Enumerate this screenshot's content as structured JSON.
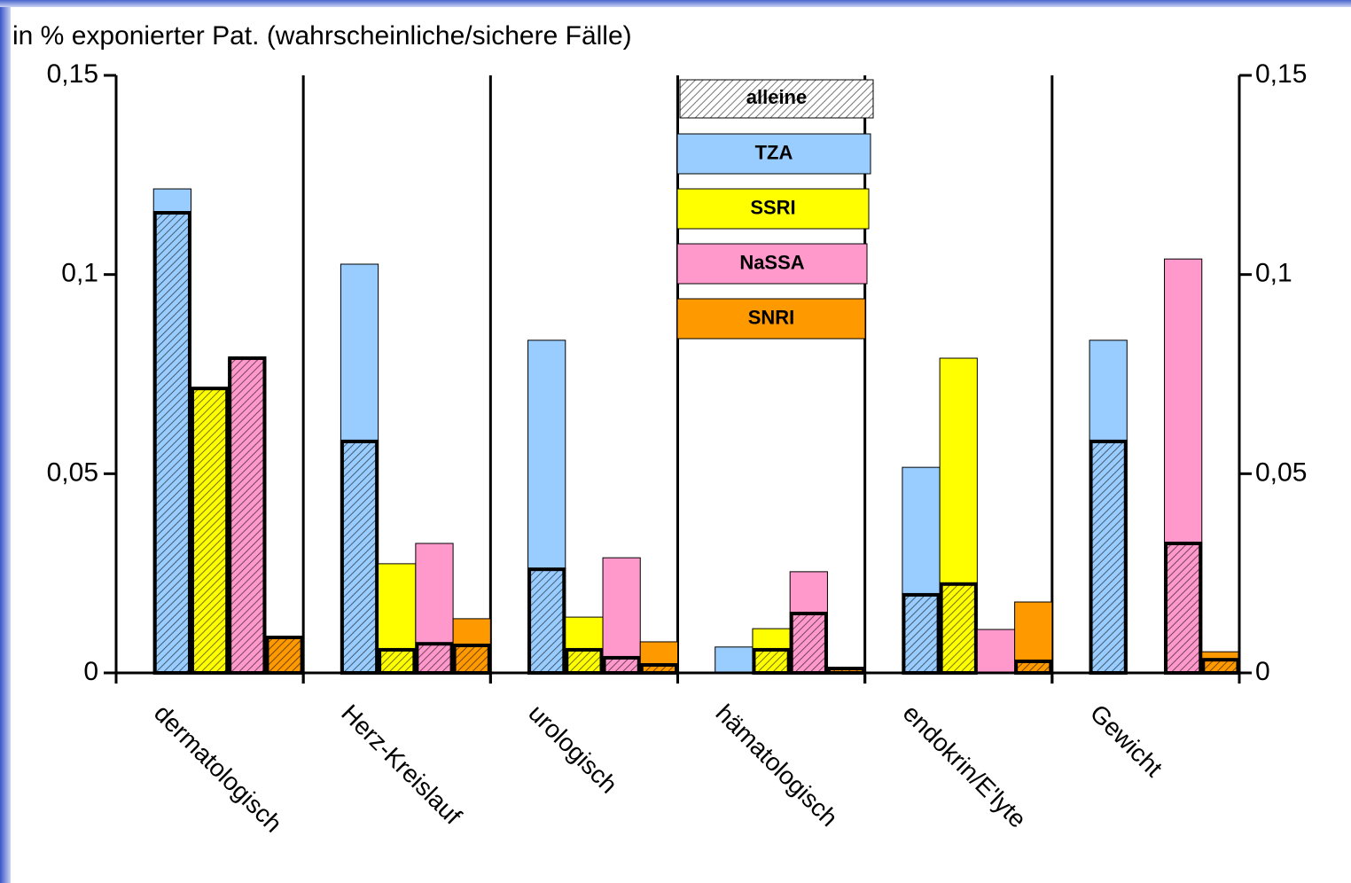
{
  "chart_data": {
    "type": "bar",
    "title": "in % exponierter Pat. (wahrscheinliche/sichere Fälle)",
    "categories": [
      "dermatologisch",
      "Herz-Kreislauf",
      "urologisch",
      "hämatologisch",
      "endokrin/E'lyte",
      "Gewicht"
    ],
    "overlay_name": "alleine",
    "series": [
      {
        "name": "TZA",
        "color": "#99ccff",
        "values": [
          0.1215,
          0.1026,
          0.0835,
          0.0065,
          0.0516,
          0.0835
        ],
        "alone_values": [
          0.1155,
          0.0581,
          0.026,
          null,
          0.0196,
          0.0581
        ]
      },
      {
        "name": "SSRI",
        "color": "#ffff00",
        "values": [
          0.0714,
          0.0274,
          0.014,
          0.0111,
          0.079,
          null
        ],
        "alone_values": [
          0.0714,
          0.0058,
          0.0058,
          0.0058,
          0.0223,
          null
        ]
      },
      {
        "name": "NaSSA",
        "color": "#ff99cc",
        "values": [
          0.079,
          0.0325,
          0.0289,
          0.0254,
          0.0109,
          0.1039
        ],
        "alone_values": [
          0.079,
          0.0073,
          0.0038,
          0.0149,
          null,
          0.0325
        ]
      },
      {
        "name": "SNRI",
        "color": "#ff9900",
        "values": [
          0.0089,
          0.0136,
          0.0078,
          0.0011,
          0.0178,
          0.0053
        ],
        "alone_values": [
          0.0089,
          0.0069,
          0.002,
          0.0011,
          0.0029,
          0.0033
        ]
      }
    ],
    "ylim": [
      0,
      0.15
    ],
    "yticks": [
      0,
      {
        "value": 0.05,
        "label": "0,05"
      },
      {
        "value": 0.1,
        "label": "0,1"
      },
      {
        "value": 0.15,
        "label": "0,15"
      }
    ]
  }
}
